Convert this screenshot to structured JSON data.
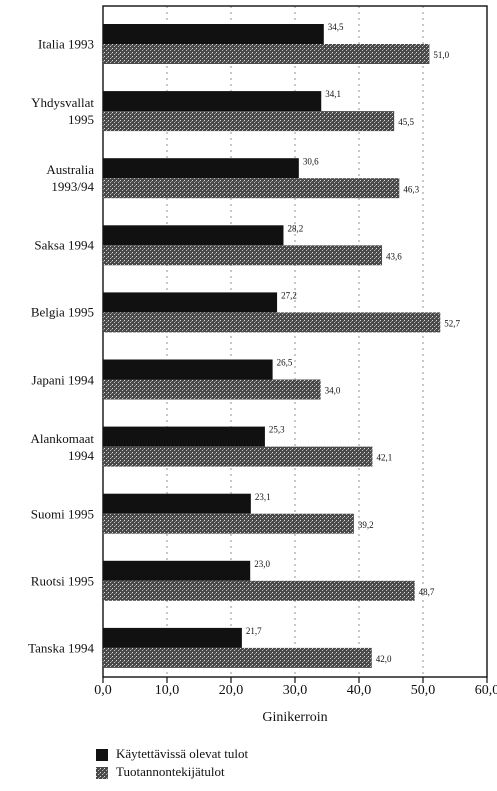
{
  "chart_data": {
    "type": "barh",
    "categories": [
      "Italia 1993",
      "Yhdysvallat 1995",
      "Australia 1993/94",
      "Saksa 1994",
      "Belgia 1995",
      "Japani 1994",
      "Alankomaat 1994",
      "Suomi 1995",
      "Ruotsi 1995",
      "Tanska 1994"
    ],
    "series": [
      {
        "name": "Käytettävissä olevat tulot",
        "color": "#111111",
        "values": [
          34.5,
          34.1,
          30.6,
          28.2,
          27.2,
          26.5,
          25.3,
          23.1,
          23.0,
          21.7
        ],
        "value_labels": [
          "34,5",
          "34,1",
          "30,6",
          "28,2",
          "27,2",
          "26,5",
          "25,3",
          "23,1",
          "23,0",
          "21,7"
        ]
      },
      {
        "name": "Tuotannontekijätulot",
        "color": "#4a4a4a",
        "values": [
          51.0,
          45.5,
          46.3,
          43.6,
          52.7,
          34.0,
          42.1,
          39.2,
          48.7,
          42.0
        ],
        "value_labels": [
          "51,0",
          "45,5",
          "46,3",
          "43,6",
          "52,7",
          "34,0",
          "42,1",
          "39,2",
          "48,7",
          "42,0"
        ]
      }
    ],
    "xlabel": "Ginikerroin",
    "xlim": [
      0,
      60
    ],
    "xticks": [
      {
        "value": 0,
        "label": "0,0"
      },
      {
        "value": 10,
        "label": "10,0"
      },
      {
        "value": 20,
        "label": "20,0"
      },
      {
        "value": 30,
        "label": "30,0"
      },
      {
        "value": 40,
        "label": "40,0"
      },
      {
        "value": 50,
        "label": "50,0"
      },
      {
        "value": 60,
        "label": "60,0"
      }
    ],
    "grid": true
  }
}
